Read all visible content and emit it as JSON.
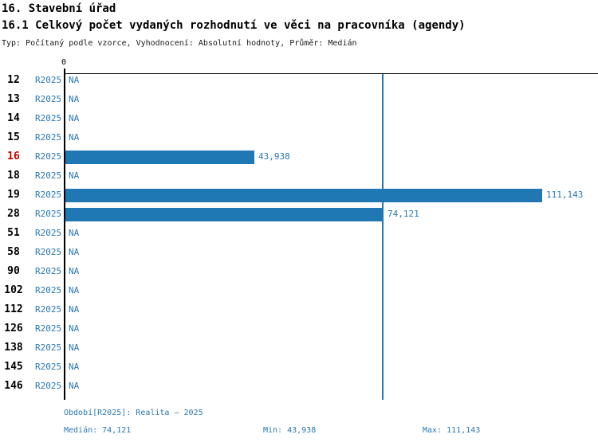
{
  "header": {
    "title": "16. Stavební úřad",
    "subtitle": "16.1 Celkový počet vydaných rozhodnutí ve věci na pracovníka (agendy)",
    "meta": "Typ: Počítaný podle vzorce, Vyhodnocení: Absolutní hodnoty, Průměr: Medián"
  },
  "chart_data": {
    "type": "bar",
    "orientation": "horizontal",
    "title": "16.1 Celkový počet vydaných rozhodnutí ve věci na pracovníka (agendy)",
    "axis_zero_label": "0",
    "xlim": [
      0,
      124000
    ],
    "median": 74121,
    "min": 43938,
    "max": 111143,
    "highlighted_category": "16",
    "series_period": "R2025",
    "na_label": "NA",
    "categories": [
      "12",
      "13",
      "14",
      "15",
      "16",
      "18",
      "19",
      "28",
      "51",
      "58",
      "90",
      "102",
      "112",
      "126",
      "138",
      "145",
      "146"
    ],
    "values": [
      null,
      null,
      null,
      null,
      43938,
      null,
      111143,
      74121,
      null,
      null,
      null,
      null,
      null,
      null,
      null,
      null,
      null
    ],
    "colors": {
      "bar": "#1f77b4",
      "median_line": "#1f77b4",
      "text_blue": "#2878b4",
      "highlight_red": "#cc0000"
    },
    "rows": [
      {
        "id": "12",
        "period": "R2025",
        "value": null,
        "label": "NA",
        "highlight": false
      },
      {
        "id": "13",
        "period": "R2025",
        "value": null,
        "label": "NA",
        "highlight": false
      },
      {
        "id": "14",
        "period": "R2025",
        "value": null,
        "label": "NA",
        "highlight": false
      },
      {
        "id": "15",
        "period": "R2025",
        "value": null,
        "label": "NA",
        "highlight": false
      },
      {
        "id": "16",
        "period": "R2025",
        "value": 43938,
        "label": "43,938",
        "highlight": true
      },
      {
        "id": "18",
        "period": "R2025",
        "value": null,
        "label": "NA",
        "highlight": false
      },
      {
        "id": "19",
        "period": "R2025",
        "value": 111143,
        "label": "111,143",
        "highlight": false
      },
      {
        "id": "28",
        "period": "R2025",
        "value": 74121,
        "label": "74,121",
        "highlight": false
      },
      {
        "id": "51",
        "period": "R2025",
        "value": null,
        "label": "NA",
        "highlight": false
      },
      {
        "id": "58",
        "period": "R2025",
        "value": null,
        "label": "NA",
        "highlight": false
      },
      {
        "id": "90",
        "period": "R2025",
        "value": null,
        "label": "NA",
        "highlight": false
      },
      {
        "id": "102",
        "period": "R2025",
        "value": null,
        "label": "NA",
        "highlight": false
      },
      {
        "id": "112",
        "period": "R2025",
        "value": null,
        "label": "NA",
        "highlight": false
      },
      {
        "id": "126",
        "period": "R2025",
        "value": null,
        "label": "NA",
        "highlight": false
      },
      {
        "id": "138",
        "period": "R2025",
        "value": null,
        "label": "NA",
        "highlight": false
      },
      {
        "id": "145",
        "period": "R2025",
        "value": null,
        "label": "NA",
        "highlight": false
      },
      {
        "id": "146",
        "period": "R2025",
        "value": null,
        "label": "NA",
        "highlight": false
      }
    ]
  },
  "footer": {
    "period": "Období[R2025]: Realita – 2025",
    "median": "Medián: 74,121",
    "min": "Min: 43,938",
    "max": "Max: 111,143"
  }
}
